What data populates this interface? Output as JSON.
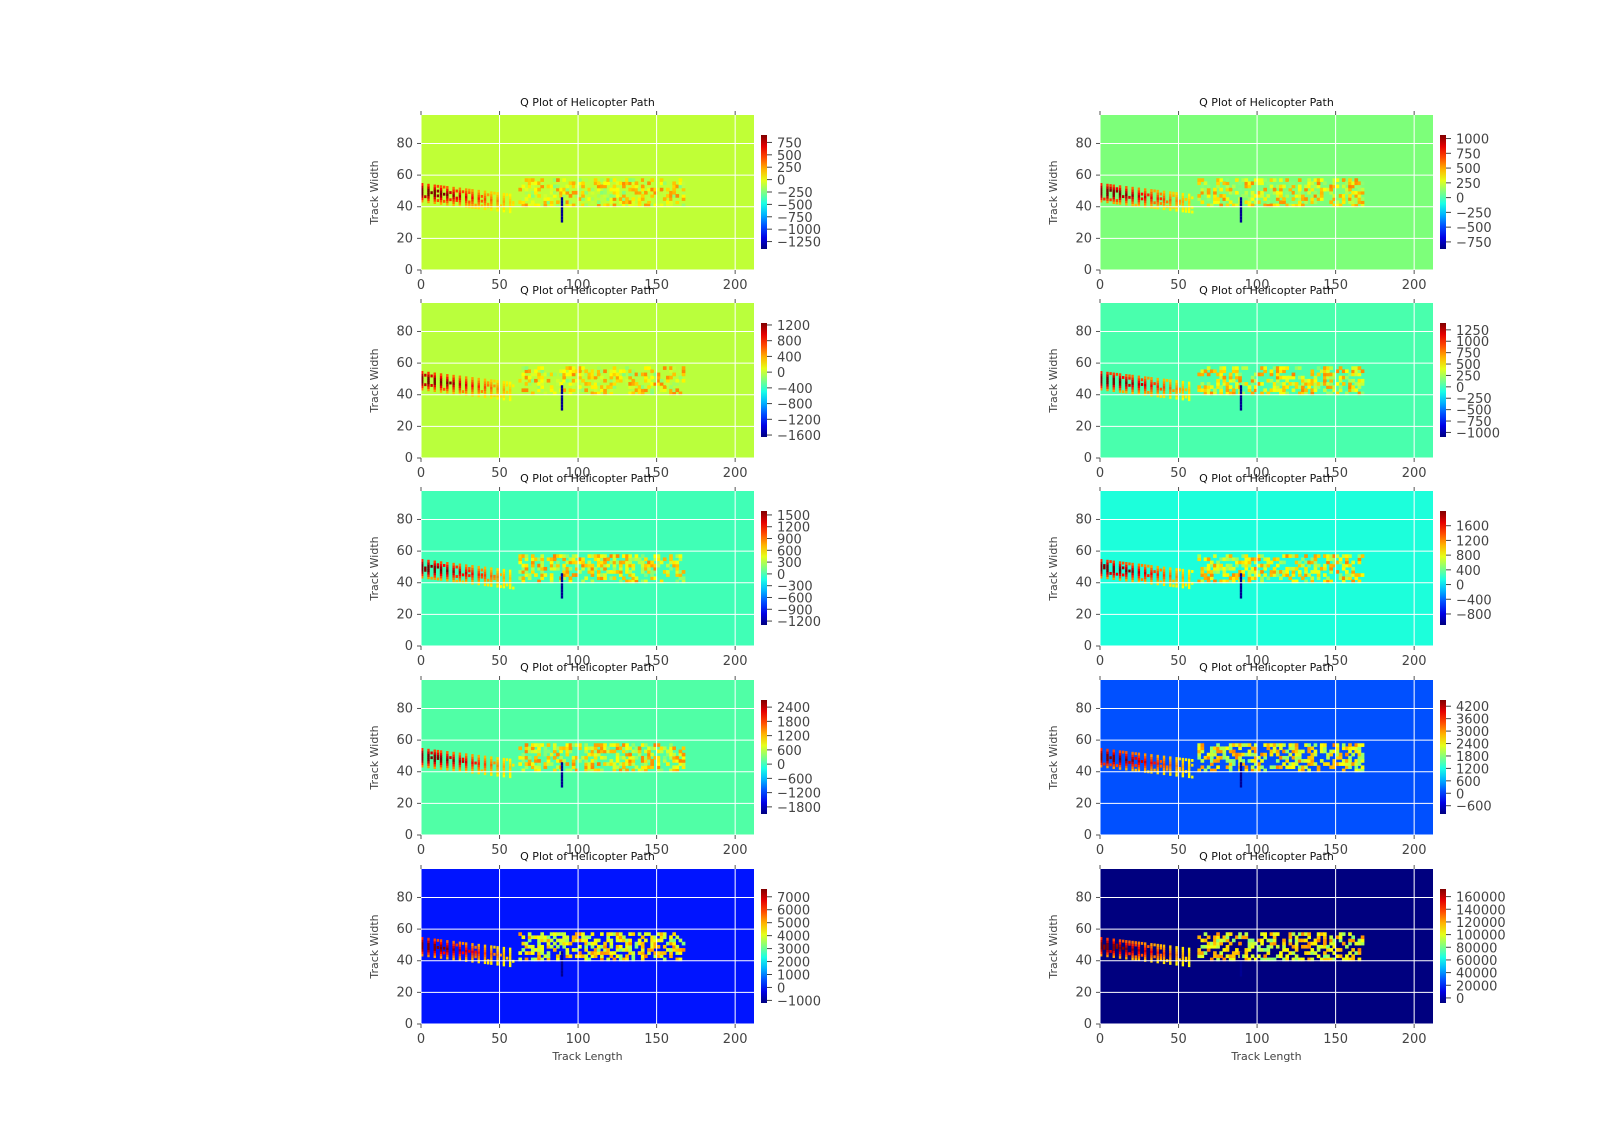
{
  "figure": {
    "background": "#ffffff"
  },
  "common": {
    "title": "Q Plot of Helicopter Path",
    "xlabel": "Track Length",
    "ylabel": "Track Width",
    "xlim": [
      0,
      212
    ],
    "ylim": [
      0,
      98
    ],
    "x_ticks": [
      0,
      50,
      100,
      150,
      200
    ],
    "y_ticks": [
      0,
      20,
      40,
      60,
      80
    ],
    "grid": true,
    "colormap": "jet"
  },
  "chart_data": [
    {
      "type": "heatmap",
      "row": 0,
      "col": 0,
      "title": "Q Plot of Helicopter Path",
      "ylabel": "Track Width",
      "xlabel": "",
      "background_color": "#c0ff36",
      "vmin": -1400,
      "vmax": 900,
      "colorbar_ticks": [
        750,
        500,
        250,
        0,
        -250,
        -500,
        -750,
        -1000,
        -1250
      ]
    },
    {
      "type": "heatmap",
      "row": 0,
      "col": 1,
      "title": "Q Plot of Helicopter Path",
      "ylabel": "Track Width",
      "xlabel": "",
      "background_color": "#7dff7a",
      "vmin": -870,
      "vmax": 1060,
      "colorbar_ticks": [
        1000,
        750,
        500,
        250,
        0,
        -250,
        -500,
        -750
      ]
    },
    {
      "type": "heatmap",
      "row": 1,
      "col": 0,
      "title": "Q Plot of Helicopter Path",
      "ylabel": "Track Width",
      "xlabel": "",
      "background_color": "#baff3c",
      "vmin": -1650,
      "vmax": 1250,
      "colorbar_ticks": [
        1200,
        800,
        400,
        0,
        -400,
        -800,
        -1200,
        -1600
      ]
    },
    {
      "type": "heatmap",
      "row": 1,
      "col": 1,
      "title": "Q Plot of Helicopter Path",
      "ylabel": "Track Width",
      "xlabel": "",
      "background_color": "#49ffad",
      "vmin": -1100,
      "vmax": 1400,
      "colorbar_ticks": [
        1250,
        1000,
        750,
        500,
        250,
        0,
        -250,
        -500,
        -750,
        -1000
      ]
    },
    {
      "type": "heatmap",
      "row": 2,
      "col": 0,
      "title": "Q Plot of Helicopter Path",
      "ylabel": "Track Width",
      "xlabel": "",
      "background_color": "#40ffb6",
      "vmin": -1300,
      "vmax": 1600,
      "colorbar_ticks": [
        1500,
        1200,
        900,
        600,
        300,
        0,
        -300,
        -600,
        -900,
        -1200
      ]
    },
    {
      "type": "heatmap",
      "row": 2,
      "col": 1,
      "title": "Q Plot of Helicopter Path",
      "ylabel": "Track Width",
      "xlabel": "",
      "background_color": "#1cffdb",
      "vmin": -1100,
      "vmax": 2000,
      "colorbar_ticks": [
        1600,
        1200,
        800,
        400,
        0,
        -400,
        -800
      ]
    },
    {
      "type": "heatmap",
      "row": 3,
      "col": 0,
      "title": "Q Plot of Helicopter Path",
      "ylabel": "Track Width",
      "xlabel": "",
      "background_color": "#50ffa6",
      "vmin": -2100,
      "vmax": 2700,
      "colorbar_ticks": [
        2400,
        1800,
        1200,
        600,
        0,
        -600,
        -1200,
        -1800
      ]
    },
    {
      "type": "heatmap",
      "row": 3,
      "col": 1,
      "title": "Q Plot of Helicopter Path",
      "ylabel": "Track Width",
      "xlabel": "",
      "background_color": "#0050ff",
      "vmin": -1000,
      "vmax": 4500,
      "colorbar_ticks": [
        4200,
        3600,
        3000,
        2400,
        1800,
        1200,
        600,
        0,
        -600
      ]
    },
    {
      "type": "heatmap",
      "row": 4,
      "col": 0,
      "title": "Q Plot of Helicopter Path",
      "ylabel": "Track Width",
      "xlabel": "Track Length",
      "background_color": "#0014ff",
      "vmin": -1200,
      "vmax": 7600,
      "colorbar_ticks": [
        7000,
        6000,
        5000,
        4000,
        3000,
        2000,
        1000,
        0,
        -1000
      ]
    },
    {
      "type": "heatmap",
      "row": 4,
      "col": 1,
      "title": "Q Plot of Helicopter Path",
      "ylabel": "Track Width",
      "xlabel": "Track Length",
      "background_color": "#00007f",
      "vmin": -8000,
      "vmax": 172000,
      "colorbar_ticks": [
        160000,
        140000,
        120000,
        100000,
        80000,
        60000,
        40000,
        20000,
        0
      ]
    }
  ]
}
